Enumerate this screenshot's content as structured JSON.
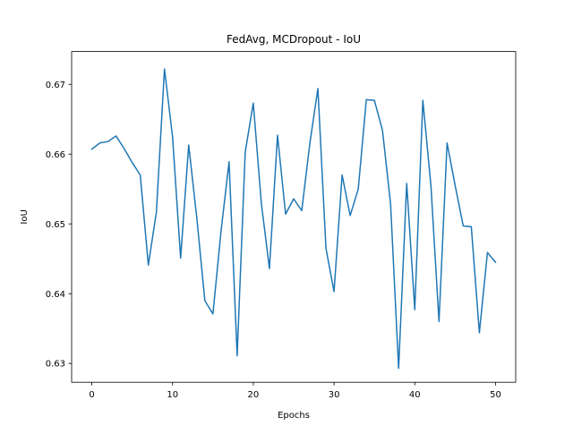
{
  "chart_data": {
    "type": "line",
    "title": "FedAvg, MCDropout - IoU",
    "xlabel": "Epochs",
    "ylabel": "IoU",
    "xlim": [
      -2.5,
      52.5
    ],
    "ylim": [
      0.6273,
      0.6747
    ],
    "xticks": [
      0,
      10,
      20,
      30,
      40,
      50
    ],
    "xtick_labels": [
      "0",
      "10",
      "20",
      "30",
      "40",
      "50"
    ],
    "yticks": [
      0.63,
      0.64,
      0.65,
      0.66,
      0.67
    ],
    "ytick_labels": [
      "0.63",
      "0.64",
      "0.65",
      "0.66",
      "0.67"
    ],
    "grid": false,
    "series": [
      {
        "color": "#1f77b4",
        "x": [
          0,
          1,
          2,
          3,
          4,
          5,
          6,
          7,
          8,
          9,
          10,
          11,
          12,
          13,
          14,
          15,
          16,
          17,
          18,
          19,
          20,
          21,
          22,
          23,
          24,
          25,
          26,
          27,
          28,
          29,
          30,
          31,
          32,
          33,
          34,
          35,
          36,
          37,
          38,
          39,
          40,
          41,
          42,
          43,
          44,
          45,
          46,
          47,
          48,
          49,
          50
        ],
        "y": [
          0.6607,
          0.6616,
          0.6618,
          0.6626,
          0.6608,
          0.6588,
          0.657,
          0.6441,
          0.6517,
          0.6722,
          0.6625,
          0.6451,
          0.6613,
          0.6509,
          0.639,
          0.6371,
          0.6489,
          0.6589,
          0.6311,
          0.6603,
          0.6673,
          0.6529,
          0.6436,
          0.6627,
          0.6514,
          0.6536,
          0.6519,
          0.6615,
          0.6694,
          0.6465,
          0.6403,
          0.657,
          0.6512,
          0.655,
          0.6678,
          0.6677,
          0.6634,
          0.6529,
          0.6293,
          0.6558,
          0.6377,
          0.6677,
          0.6555,
          0.636,
          0.6616,
          0.6555,
          0.6497,
          0.6496,
          0.6344,
          0.6459,
          0.6445
        ]
      }
    ]
  }
}
